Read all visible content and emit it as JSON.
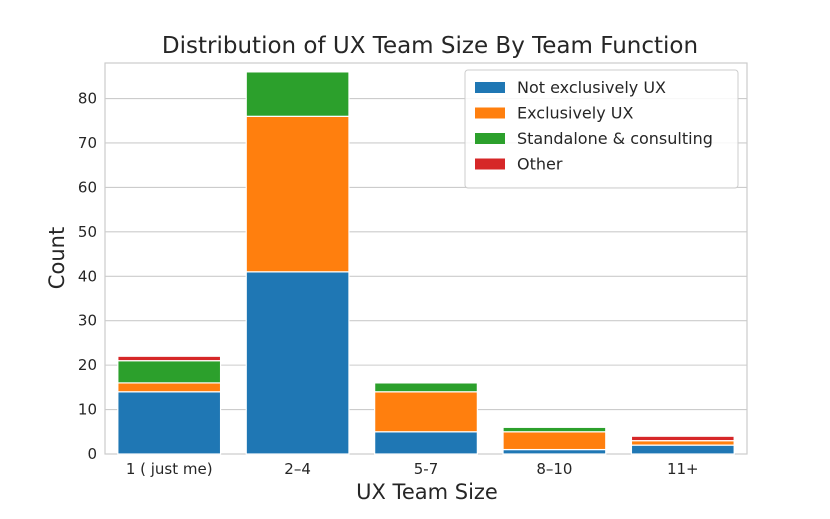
{
  "chart_data": {
    "type": "bar",
    "stacked": true,
    "title": "Distribution of UX Team Size By Team Function",
    "xlabel": "UX Team Size",
    "ylabel": "Count",
    "categories": [
      "1 ( just me)",
      "2–4",
      "5-7",
      "8–10",
      "11+"
    ],
    "ylim": [
      0,
      88
    ],
    "yticks": [
      0,
      10,
      20,
      30,
      40,
      50,
      60,
      70,
      80
    ],
    "grid": true,
    "legend_position": "top-right",
    "series": [
      {
        "name": "Not exclusively UX",
        "color": "#1f77b4",
        "values": [
          14,
          41,
          5,
          1,
          2
        ]
      },
      {
        "name": "Exclusively UX",
        "color": "#ff7f0e",
        "values": [
          2,
          35,
          9,
          4,
          1
        ]
      },
      {
        "name": "Standalone & consulting",
        "color": "#2ca02c",
        "values": [
          5,
          10,
          2,
          1,
          0
        ]
      },
      {
        "name": "Other",
        "color": "#d62728",
        "values": [
          1,
          0,
          0,
          0,
          1
        ]
      }
    ]
  }
}
